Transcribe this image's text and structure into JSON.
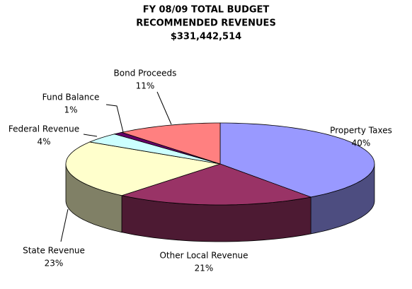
{
  "chart_data": {
    "type": "pie3d",
    "title": [
      "FY 08/09 TOTAL BUDGET",
      "RECOMMENDED REVENUES",
      "$331,442,514"
    ],
    "categories": [
      "Property Taxes",
      "Other Local Revenue",
      "State Revenue",
      "Federal Revenue",
      "Fund Balance",
      "Bond Proceeds"
    ],
    "values": [
      40,
      21,
      23,
      4,
      1,
      11
    ],
    "value_labels": [
      "40%",
      "21%",
      "23%",
      "4%",
      "1%",
      "11%"
    ],
    "colors": [
      "#9999ff",
      "#993366",
      "#ffffcc",
      "#ccffff",
      "#660066",
      "#ff8080"
    ]
  }
}
